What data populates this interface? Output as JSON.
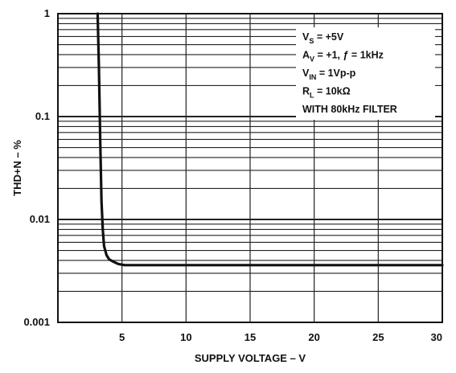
{
  "chart_data": {
    "type": "line",
    "xlabel": "SUPPLY VOLTAGE – V",
    "ylabel": "THD+N – %",
    "xlim": [
      0,
      30
    ],
    "ylim": [
      0.001,
      1
    ],
    "yscale": "log",
    "x_ticks": [
      5,
      10,
      15,
      20,
      25,
      30
    ],
    "y_ticks": [
      {
        "value": 0.001,
        "label": "0.001"
      },
      {
        "value": 0.01,
        "label": "0.01"
      },
      {
        "value": 0.1,
        "label": "0.1"
      },
      {
        "value": 1,
        "label": "1"
      }
    ],
    "grid": true,
    "legend": "none",
    "annotation": [
      {
        "main": "V",
        "sub": "S",
        "rest": " = +5V"
      },
      {
        "main": "A",
        "sub": "V",
        "rest": " = +1, ƒ = 1kHz"
      },
      {
        "main": "V",
        "sub": "IN",
        "rest": " = 1Vp-p"
      },
      {
        "main": "R",
        "sub": "L",
        "rest": " = 10kΩ"
      },
      {
        "main": "WITH 80kHz FILTER",
        "sub": "",
        "rest": ""
      }
    ],
    "series": [
      {
        "x": [
          3.1,
          3.2,
          3.3,
          3.4,
          3.5,
          3.6,
          3.8,
          4.0,
          4.3,
          4.7,
          5.2,
          6,
          8,
          10,
          15,
          20,
          25,
          30
        ],
        "values": [
          1.0,
          0.3,
          0.06,
          0.015,
          0.008,
          0.0055,
          0.0045,
          0.0041,
          0.0039,
          0.0037,
          0.0036,
          0.0036,
          0.0036,
          0.0036,
          0.0036,
          0.0036,
          0.0036,
          0.0036
        ]
      }
    ]
  }
}
